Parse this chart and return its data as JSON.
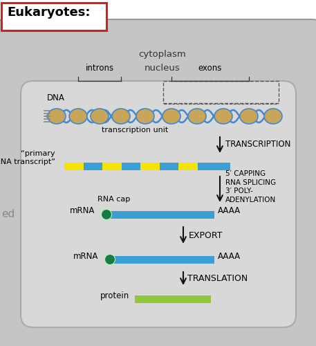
{
  "title": "Eukaryotes:",
  "bg_color": "#ffffff",
  "cytoplasm_color": "#c5c5c5",
  "nucleus_color": "#d8d8d8",
  "cytoplasm_label": "cytoplasm",
  "nucleus_label": "nucleus",
  "introns_label": "introns",
  "exons_label": "exons",
  "dna_label": "DNA",
  "transcription_unit_label": "transcription unit",
  "transcription_label": "TRANSCRIPTION",
  "primary_rna_label": "“primary\nRNA transcript”",
  "capping_label": "5′ CAPPING\nRNA SPLICING\n3′ POLY-\nADENYLATION",
  "rna_cap_label": "RNA cap",
  "mrna_label1": "mRNA",
  "aaaa_label1": "AAAA",
  "export_label": "EXPORT",
  "mrna_label2": "mRNA",
  "aaaa_label2": "AAAA",
  "translation_label": "TRANSLATION",
  "protein_label": "protein",
  "ed_label": "ed",
  "arrow_color": "#111111",
  "mrna_bar_color": "#3a9fd4",
  "mrna_cap_color": "#1a7a45",
  "primary_rna_blue": "#3a9fd4",
  "primary_rna_yellow": "#f5e400",
  "protein_bar_color": "#8fc83a",
  "nucleosome_body": "#c8a558",
  "nucleosome_wrap": "#4488cc",
  "title_edge": "#cc2222",
  "bracket_color": "#333333"
}
